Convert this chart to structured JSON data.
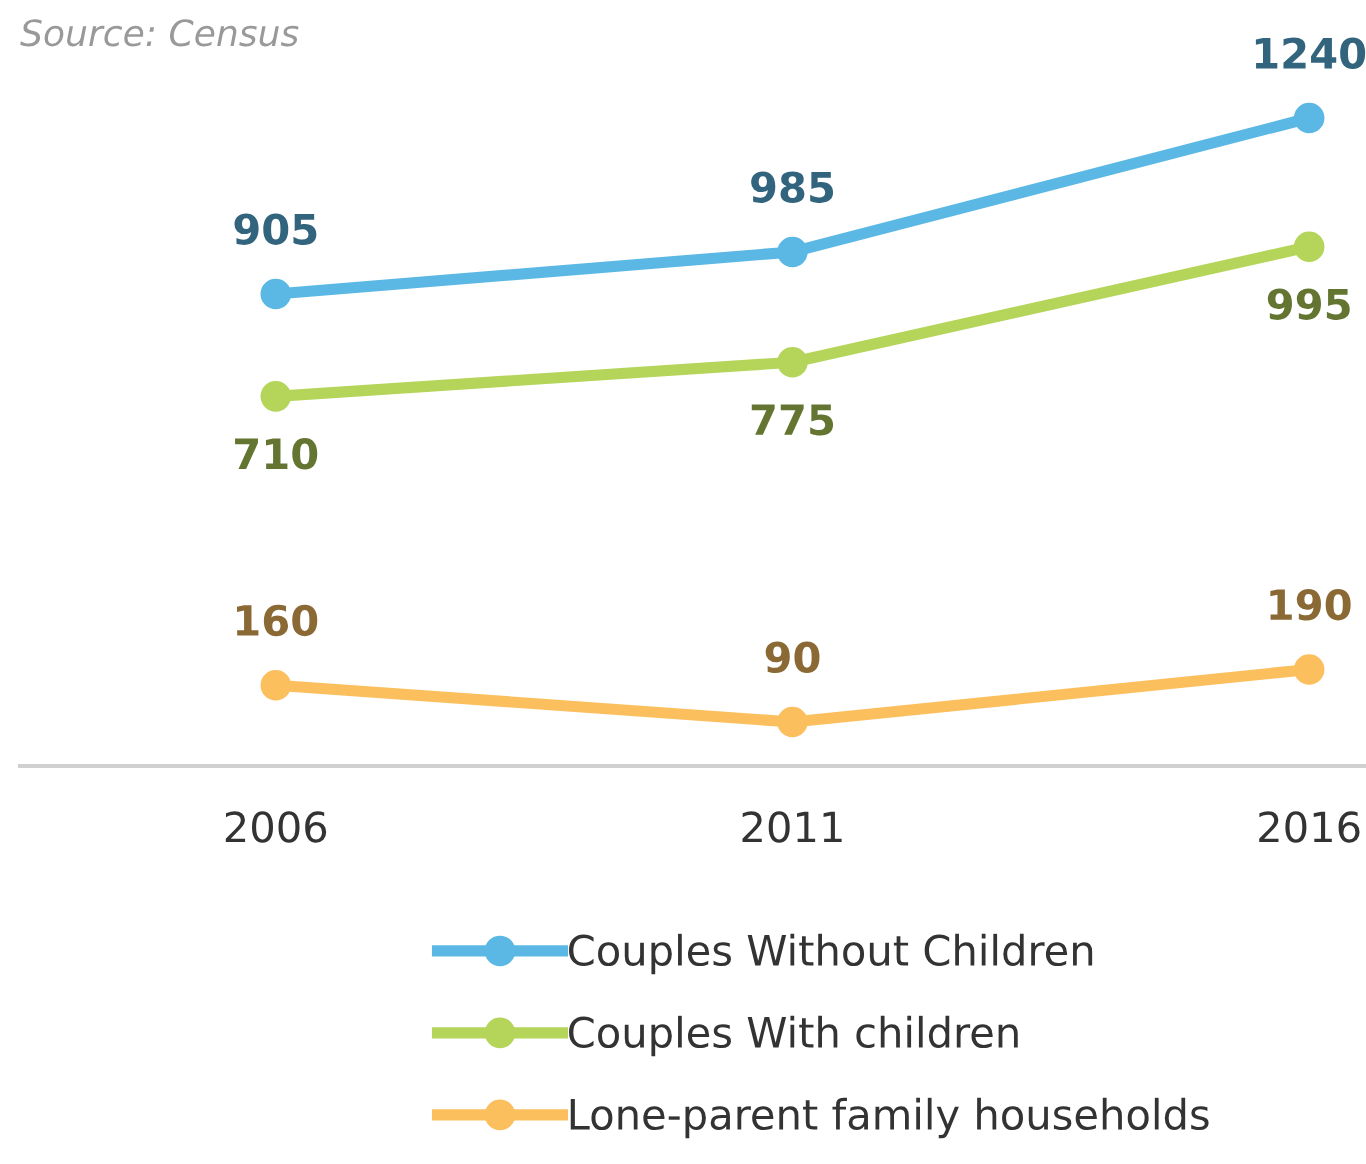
{
  "chart_data": {
    "type": "line",
    "categories": [
      "2006",
      "2011",
      "2016"
    ],
    "series": [
      {
        "name": "Couples Without Children",
        "color": "#5bb8e4",
        "values": [
          905,
          985,
          1240
        ]
      },
      {
        "name": "Couples With children",
        "color": "#b5d55a",
        "values": [
          710,
          775,
          995
        ]
      },
      {
        "name": "Lone-parent family households",
        "color": "#fbbf5e",
        "values": [
          160,
          90,
          190
        ]
      }
    ],
    "data_labels": true,
    "marker": "circle",
    "line_style": "solid",
    "grid": false,
    "legend": "bottom",
    "annotations": [
      "Source: Census"
    ]
  }
}
